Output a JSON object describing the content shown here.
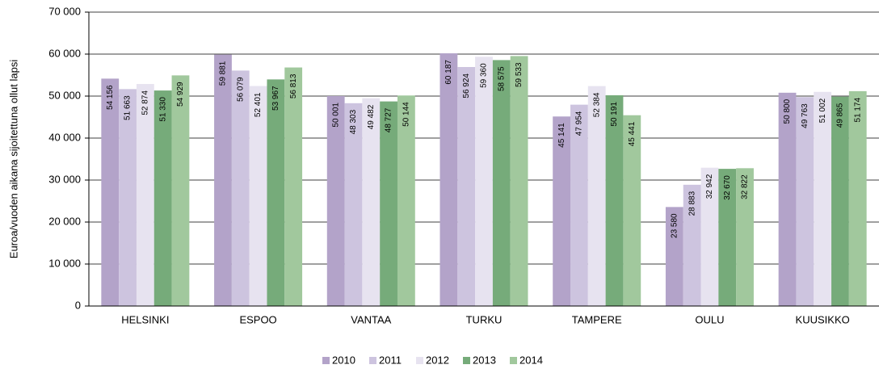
{
  "chart_data": {
    "type": "bar",
    "y_label": "Euroa/vuoden aikana sijoitettuna ollut lapsi",
    "categories": [
      "HELSINKI",
      "ESPOO",
      "VANTAA",
      "TURKU",
      "TAMPERE",
      "OULU",
      "KUUSIKKO"
    ],
    "series": [
      {
        "name": "2010",
        "color": "#b3a3c9",
        "values": [
          54156,
          59881,
          50001,
          60187,
          45141,
          23580,
          50800
        ],
        "value_labels": [
          "54 156",
          "59 881",
          "50 001",
          "60 187",
          "45 141",
          "23 580",
          "50 800"
        ]
      },
      {
        "name": "2011",
        "color": "#cdc4df",
        "values": [
          51663,
          56079,
          48303,
          56924,
          47954,
          28883,
          49763
        ],
        "value_labels": [
          "51 663",
          "56 079",
          "48 303",
          "56 924",
          "47 954",
          "28 883",
          "49 763"
        ]
      },
      {
        "name": "2012",
        "color": "#e7e3f0",
        "values": [
          52874,
          52401,
          49482,
          59360,
          52384,
          32942,
          51002
        ],
        "value_labels": [
          "52 874",
          "52 401",
          "49 482",
          "59 360",
          "52 384",
          "32 942",
          "51 002"
        ]
      },
      {
        "name": "2013",
        "color": "#76ab7a",
        "values": [
          51330,
          53967,
          48727,
          58575,
          50191,
          32670,
          49865
        ],
        "value_labels": [
          "51 330",
          "53 967",
          "48 727",
          "58 575",
          "50 191",
          "32 670",
          "49 865"
        ]
      },
      {
        "name": "2014",
        "color": "#a1c89d",
        "values": [
          54929,
          56813,
          50144,
          59533,
          45441,
          32822,
          51174
        ],
        "value_labels": [
          "54 929",
          "56 813",
          "50 144",
          "59 533",
          "45 441",
          "32 822",
          "51 174"
        ]
      }
    ],
    "ylim": [
      0,
      70000
    ],
    "yticks": [
      0,
      {
        "value": 10000,
        "label": "10 000"
      },
      {
        "value": 20000,
        "label": "20 000"
      },
      {
        "value": 30000,
        "label": "30 000"
      },
      {
        "value": 40000,
        "label": "40 000"
      },
      {
        "value": 50000,
        "label": "50 000"
      },
      {
        "value": 60000,
        "label": "60 000"
      },
      {
        "value": 70000,
        "label": "70 000"
      }
    ],
    "grid": true,
    "legend": "bottom"
  }
}
